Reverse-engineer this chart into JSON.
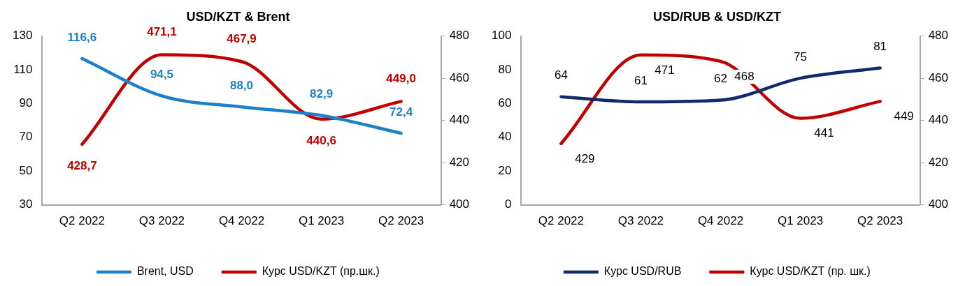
{
  "chart_data": [
    {
      "type": "line",
      "title": "USD/KZT & Brent",
      "categories": [
        "Q2 2022",
        "Q3 2022",
        "Q4 2022",
        "Q1 2023",
        "Q2 2023"
      ],
      "series": [
        {
          "name": "Brent, USD",
          "color": "#1f7fc8",
          "values": [
            116.6,
            94.5,
            88.0,
            82.9,
            72.4
          ],
          "value_labels": [
            "116,6",
            "94,5",
            "88,0",
            "82,9",
            "72,4"
          ]
        },
        {
          "name": "Курс USD/KZT (пр.шк.)",
          "color": "#c00000",
          "axis": "y2",
          "values": [
            428.7,
            471.1,
            467.9,
            440.6,
            449.0
          ],
          "value_labels": [
            "428,7",
            "471,1",
            "467,9",
            "440,6",
            "449,0"
          ]
        }
      ],
      "ylim": [
        30,
        130
      ],
      "yticks": [
        30,
        50,
        70,
        90,
        110,
        130
      ],
      "y2lim": [
        400,
        480
      ],
      "y2ticks": [
        400,
        420,
        440,
        460,
        480
      ],
      "grid": false,
      "legend": "bottom",
      "marker": "none"
    },
    {
      "type": "line",
      "title": "USD/RUB & USD/KZT",
      "categories": [
        "Q2 2022",
        "Q3 2022",
        "Q4 2022",
        "Q1 2023",
        "Q2 2023"
      ],
      "series": [
        {
          "name": "Курс USD/RUB",
          "color": "#102a6b",
          "values": [
            64,
            61,
            62,
            75,
            81
          ]
        },
        {
          "name": "Курс USD/KZT (пр. шк.)",
          "color": "#c00000",
          "axis": "y2",
          "values": [
            429,
            471,
            468,
            441,
            449
          ]
        }
      ],
      "ylim": [
        0,
        100
      ],
      "yticks": [
        0,
        20,
        40,
        60,
        80,
        100
      ],
      "y2lim": [
        400,
        480
      ],
      "y2ticks": [
        400,
        420,
        440,
        460,
        480
      ],
      "grid": false,
      "legend": "bottom",
      "marker": "none",
      "data_labels": true
    }
  ]
}
